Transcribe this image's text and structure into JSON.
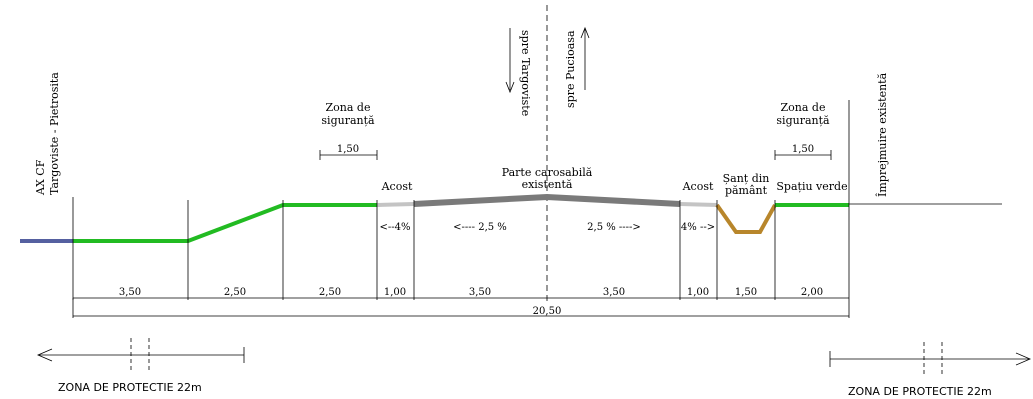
{
  "labels": {
    "ax_cf_1": "AX CF",
    "ax_cf_2": "Targoviste - Pietrosita",
    "zona_sig_left_1": "Zona de",
    "zona_sig_left_2": "siguranță",
    "zona_sig_left_width": "1,50",
    "zona_sig_right_1": "Zona de",
    "zona_sig_right_2": "siguranță",
    "zona_sig_right_width": "1,50",
    "acost_left": "Acost",
    "acost_right": "Acost",
    "parte_1": "Parte carosabilă",
    "parte_2": "existentă",
    "sant_1": "Șanț din",
    "sant_2": "pământ",
    "spatiu_verde": "Spațiu verde",
    "imprejmuire": "Împrejmuire existentă",
    "spre_targoviste": "spre Targoviste",
    "spre_pucioasa": "spre Pucioasa",
    "slope_acost_left": "<--4%",
    "slope_road_left": "<---- 2,5 %",
    "slope_road_right": "2,5 % ---->",
    "slope_acost_right": "4% -->",
    "total": "20,50",
    "zona_protectie_left": "ZONA DE PROTECTIE 22m",
    "zona_protectie_right": "ZONA DE PROTECTIE 22m"
  },
  "dimensions": [
    "3,50",
    "2,50",
    "2,50",
    "1,00",
    "3,50",
    "3,50",
    "1,00",
    "1,50",
    "2,00"
  ],
  "colors": {
    "green": "#22bb22",
    "road": "#7a7a7a",
    "shoulder": "#c4c4c4",
    "ditch": "#b8862b",
    "rail": "#5560a0"
  }
}
